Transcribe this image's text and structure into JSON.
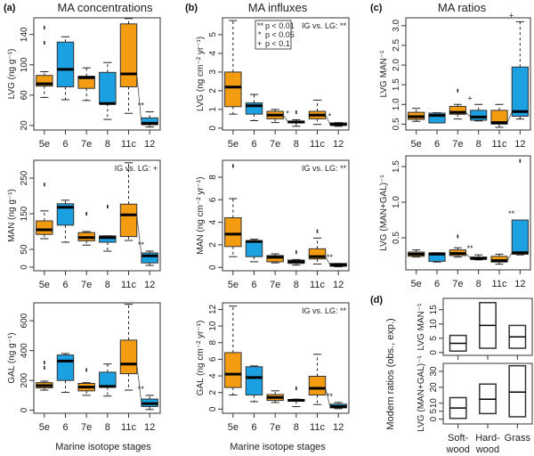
{
  "figure": {
    "column_titles": [
      "MA concentrations",
      "MA influxes",
      "MA ratios"
    ],
    "panel_letters": [
      "(a)",
      "(b)",
      "(c)",
      "(d)"
    ],
    "xlabel": "Marine isotope stages",
    "legend": [
      {
        "symbol": "**",
        "label": "p < 0.01"
      },
      {
        "symbol": "*",
        "label": "p < 0.05"
      },
      {
        "symbol": "+",
        "label": "p < 0.1"
      }
    ],
    "colors": {
      "interglacial": "#F39C12",
      "glacial": "#1BA1E2"
    },
    "modern_ylabel": "Modern ratios (obs., exp.)"
  },
  "chart_data": [
    {
      "type": "box",
      "panel": "a",
      "id": "a-lvg",
      "title": "MA concentrations",
      "ylabel": "LVG (ng g⁻¹)",
      "xlabel": "",
      "ylim": [
        14,
        162
      ],
      "yticks": [
        20,
        60,
        100,
        140
      ],
      "categories": [
        "5e",
        "6",
        "7e",
        "8",
        "11c",
        "12"
      ],
      "annotation": "",
      "boxes": [
        {
          "cat": "5e",
          "phase": "interglacial",
          "wlo": 57,
          "q1": 72,
          "med": 75,
          "q3": 86,
          "whi": 91,
          "outliers": [
            129,
            149
          ]
        },
        {
          "cat": "6",
          "phase": "glacial",
          "wlo": 54,
          "q1": 71,
          "med": 94,
          "q3": 130,
          "whi": 137,
          "outliers": []
        },
        {
          "cat": "7e",
          "phase": "interglacial",
          "wlo": 53,
          "q1": 69,
          "med": 83,
          "q3": 85,
          "whi": 96,
          "outliers": []
        },
        {
          "cat": "8",
          "phase": "glacial",
          "wlo": 28,
          "q1": 49,
          "med": 49,
          "q3": 90,
          "whi": 103,
          "outliers": []
        },
        {
          "cat": "11c",
          "phase": "interglacial",
          "wlo": 36,
          "q1": 71,
          "med": 88,
          "q3": 154,
          "whi": 161,
          "outliers": []
        },
        {
          "cat": "12",
          "phase": "glacial",
          "wlo": 18,
          "q1": 21,
          "med": 23,
          "q3": 30,
          "whi": 38,
          "outliers": []
        }
      ],
      "sig": [
        {
          "between": [
            "11c",
            "12"
          ],
          "label": "**"
        }
      ]
    },
    {
      "type": "box",
      "panel": "a",
      "id": "a-man",
      "ylabel": "MAN (ng g⁻¹)",
      "xlabel": "",
      "ylim": [
        -10,
        300
      ],
      "yticks": [
        0,
        50,
        150,
        250
      ],
      "categories": [
        "5e",
        "6",
        "7e",
        "8",
        "11c",
        "12"
      ],
      "annotation": "IG vs. LG: +",
      "boxes": [
        {
          "cat": "5e",
          "phase": "interglacial",
          "wlo": 80,
          "q1": 92,
          "med": 105,
          "q3": 130,
          "whi": 158,
          "outliers": [
            232
          ]
        },
        {
          "cat": "6",
          "phase": "glacial",
          "wlo": 70,
          "q1": 118,
          "med": 168,
          "q3": 178,
          "whi": 188,
          "outliers": []
        },
        {
          "cat": "7e",
          "phase": "interglacial",
          "wlo": 62,
          "q1": 74,
          "med": 83,
          "q3": 97,
          "whi": 100,
          "outliers": [
            150
          ]
        },
        {
          "cat": "8",
          "phase": "glacial",
          "wlo": 45,
          "q1": 70,
          "med": 83,
          "q3": 88,
          "whi": 88,
          "outliers": [
            170
          ]
        },
        {
          "cat": "11c",
          "phase": "interglacial",
          "wlo": 75,
          "q1": 86,
          "med": 147,
          "q3": 177,
          "whi": 293,
          "outliers": []
        },
        {
          "cat": "12",
          "phase": "glacial",
          "wlo": 5,
          "q1": 12,
          "med": 32,
          "q3": 40,
          "whi": 45,
          "outliers": []
        }
      ],
      "sig": [
        {
          "between": [
            "11c",
            "12"
          ],
          "label": "**"
        }
      ]
    },
    {
      "type": "box",
      "panel": "a",
      "id": "a-gal",
      "ylabel": "GAL (ng g⁻¹)",
      "xlabel": "Marine isotope stages",
      "ylim": [
        -20,
        720
      ],
      "yticks": [
        0,
        200,
        400,
        600
      ],
      "categories": [
        "5e",
        "6",
        "7e",
        "8",
        "11c",
        "12"
      ],
      "annotation": "",
      "boxes": [
        {
          "cat": "5e",
          "phase": "interglacial",
          "wlo": 135,
          "q1": 150,
          "med": 165,
          "q3": 185,
          "whi": 195,
          "outliers": [
            285,
            320
          ]
        },
        {
          "cat": "6",
          "phase": "glacial",
          "wlo": 120,
          "q1": 200,
          "med": 330,
          "q3": 370,
          "whi": 380,
          "outliers": []
        },
        {
          "cat": "7e",
          "phase": "interglacial",
          "wlo": 100,
          "q1": 130,
          "med": 155,
          "q3": 180,
          "whi": 185,
          "outliers": [
            270
          ]
        },
        {
          "cat": "8",
          "phase": "glacial",
          "wlo": 95,
          "q1": 155,
          "med": 160,
          "q3": 255,
          "whi": 310,
          "outliers": []
        },
        {
          "cat": "11c",
          "phase": "interglacial",
          "wlo": 135,
          "q1": 245,
          "med": 310,
          "q3": 470,
          "whi": 710,
          "outliers": []
        },
        {
          "cat": "12",
          "phase": "glacial",
          "wlo": 5,
          "q1": 25,
          "med": 45,
          "q3": 75,
          "whi": 100,
          "outliers": []
        }
      ],
      "sig": [
        {
          "between": [
            "11c",
            "12"
          ],
          "label": "**"
        }
      ]
    },
    {
      "type": "box",
      "panel": "b",
      "id": "b-lvg",
      "title": "MA influxes",
      "ylabel": "LVG (ng cm⁻² yr⁻¹)",
      "xlabel": "",
      "ylim": [
        -0.1,
        5.9
      ],
      "yticks": [
        0,
        1,
        2,
        3,
        4,
        5
      ],
      "categories": [
        "5e",
        "6",
        "7e",
        "8",
        "11c",
        "12"
      ],
      "annotation": "IG vs. LG: **",
      "boxes": [
        {
          "cat": "5e",
          "phase": "interglacial",
          "wlo": 0.75,
          "q1": 1.15,
          "med": 2.2,
          "q3": 3.0,
          "whi": 5.75,
          "outliers": []
        },
        {
          "cat": "6",
          "phase": "glacial",
          "wlo": 0.4,
          "q1": 0.75,
          "med": 1.2,
          "q3": 1.35,
          "whi": 1.8,
          "outliers": []
        },
        {
          "cat": "7e",
          "phase": "interglacial",
          "wlo": 0.3,
          "q1": 0.5,
          "med": 0.7,
          "q3": 0.9,
          "whi": 1.0,
          "outliers": []
        },
        {
          "cat": "8",
          "phase": "glacial",
          "wlo": 0.1,
          "q1": 0.28,
          "med": 0.33,
          "q3": 0.38,
          "whi": 0.45,
          "outliers": [
            0.85
          ]
        },
        {
          "cat": "11c",
          "phase": "interglacial",
          "wlo": 0.2,
          "q1": 0.5,
          "med": 0.7,
          "q3": 0.9,
          "whi": 1.5,
          "outliers": []
        },
        {
          "cat": "12",
          "phase": "glacial",
          "wlo": 0.1,
          "q1": 0.15,
          "med": 0.2,
          "q3": 0.28,
          "whi": 0.3,
          "outliers": []
        }
      ],
      "sig": [
        {
          "between": [
            "7e",
            "8"
          ],
          "label": "*"
        },
        {
          "between": [
            "11c",
            "12"
          ],
          "label": "*"
        }
      ]
    },
    {
      "type": "box",
      "panel": "b",
      "id": "b-man",
      "ylabel": "MAN (ng cm⁻² yr⁻¹)",
      "xlabel": "",
      "ylim": [
        -0.3,
        9.5
      ],
      "yticks": [
        0,
        2,
        4,
        6,
        8
      ],
      "categories": [
        "5e",
        "6",
        "7e",
        "8",
        "11c",
        "12"
      ],
      "annotation": "IG vs. LG: **",
      "boxes": [
        {
          "cat": "5e",
          "phase": "interglacial",
          "wlo": 0.95,
          "q1": 1.85,
          "med": 2.95,
          "q3": 4.4,
          "whi": 6.1,
          "outliers": [
            9.0
          ]
        },
        {
          "cat": "6",
          "phase": "glacial",
          "wlo": 0.5,
          "q1": 0.95,
          "med": 2.3,
          "q3": 2.35,
          "whi": 2.5,
          "outliers": []
        },
        {
          "cat": "7e",
          "phase": "interglacial",
          "wlo": 0.4,
          "q1": 0.5,
          "med": 0.9,
          "q3": 1.05,
          "whi": 1.2,
          "outliers": []
        },
        {
          "cat": "8",
          "phase": "glacial",
          "wlo": 0.2,
          "q1": 0.35,
          "med": 0.5,
          "q3": 0.65,
          "whi": 0.7,
          "outliers": [
            1.35
          ]
        },
        {
          "cat": "11c",
          "phase": "interglacial",
          "wlo": 0.3,
          "q1": 0.75,
          "med": 0.95,
          "q3": 1.65,
          "whi": 2.6,
          "outliers": [
            3.2
          ]
        },
        {
          "cat": "12",
          "phase": "glacial",
          "wlo": 0.05,
          "q1": 0.1,
          "med": 0.2,
          "q3": 0.35,
          "whi": 0.35,
          "outliers": []
        }
      ],
      "sig": [
        {
          "between": [
            "11c",
            "12"
          ],
          "label": "**"
        }
      ]
    },
    {
      "type": "box",
      "panel": "b",
      "id": "b-gal",
      "ylabel": "GAL (ng cm⁻² yr⁻¹)",
      "xlabel": "Marine isotope stages",
      "ylim": [
        -0.5,
        12.8
      ],
      "yticks": [
        0,
        2,
        4,
        6,
        8,
        10,
        12
      ],
      "categories": [
        "5e",
        "6",
        "7e",
        "8",
        "11c",
        "12"
      ],
      "annotation": "IG vs. LG: **",
      "boxes": [
        {
          "cat": "5e",
          "phase": "interglacial",
          "wlo": 1.7,
          "q1": 2.6,
          "med": 4.2,
          "q3": 6.8,
          "whi": 12.4,
          "outliers": []
        },
        {
          "cat": "6",
          "phase": "glacial",
          "wlo": 0.9,
          "q1": 1.7,
          "med": 3.8,
          "q3": 5.1,
          "whi": 5.2,
          "outliers": []
        },
        {
          "cat": "7e",
          "phase": "interglacial",
          "wlo": 0.8,
          "q1": 1.05,
          "med": 1.4,
          "q3": 1.75,
          "whi": 2.2,
          "outliers": []
        },
        {
          "cat": "8",
          "phase": "glacial",
          "wlo": 0.3,
          "q1": 0.95,
          "med": 1.05,
          "q3": 1.15,
          "whi": 1.2,
          "outliers": [
            2.5
          ]
        },
        {
          "cat": "11c",
          "phase": "interglacial",
          "wlo": 0.55,
          "q1": 1.7,
          "med": 2.5,
          "q3": 3.95,
          "whi": 6.6,
          "outliers": []
        },
        {
          "cat": "12",
          "phase": "glacial",
          "wlo": 0.05,
          "q1": 0.15,
          "med": 0.3,
          "q3": 0.6,
          "whi": 0.8,
          "outliers": []
        }
      ],
      "sig": [
        {
          "between": [
            "11c",
            "12"
          ],
          "label": "**"
        }
      ]
    },
    {
      "type": "box",
      "panel": "c",
      "id": "c-lvgman",
      "title": "MA ratios",
      "ylabel": "LVG MAN⁻¹",
      "xlabel": "",
      "ylim": [
        0.35,
        3.2
      ],
      "yticks": [
        0.5,
        1.0,
        1.5,
        2.0,
        2.5,
        3.0
      ],
      "ytick_labels": [
        "0.5",
        "1.0",
        "1.5",
        "2.0",
        "2.5",
        "3.0"
      ],
      "categories": [
        "5e",
        "6",
        "7e",
        "8",
        "11c",
        "12"
      ],
      "annotation": "",
      "boxes": [
        {
          "cat": "5e",
          "phase": "interglacial",
          "wlo": 0.57,
          "q1": 0.62,
          "med": 0.69,
          "q3": 0.8,
          "whi": 0.9,
          "outliers": []
        },
        {
          "cat": "6",
          "phase": "glacial",
          "wlo": 0.53,
          "q1": 0.53,
          "med": 0.72,
          "q3": 0.78,
          "whi": 0.79,
          "outliers": []
        },
        {
          "cat": "7e",
          "phase": "interglacial",
          "wlo": 0.63,
          "q1": 0.75,
          "med": 0.8,
          "q3": 0.95,
          "whi": 1.0,
          "outliers": [
            1.35
          ]
        },
        {
          "cat": "8",
          "phase": "glacial",
          "wlo": 0.58,
          "q1": 0.6,
          "med": 0.68,
          "q3": 0.85,
          "whi": 1.0,
          "outliers": []
        },
        {
          "cat": "11c",
          "phase": "interglacial",
          "wlo": 0.42,
          "q1": 0.5,
          "med": 0.54,
          "q3": 0.85,
          "whi": 1.0,
          "outliers": []
        },
        {
          "cat": "12",
          "phase": "glacial",
          "wlo": 0.63,
          "q1": 0.7,
          "med": 0.82,
          "q3": 1.95,
          "whi": 3.1,
          "outliers": []
        }
      ],
      "sig": [
        {
          "between": [
            "7e",
            "8"
          ],
          "label": "+"
        },
        {
          "between": [
            "11c",
            "12"
          ],
          "label": "+"
        }
      ]
    },
    {
      "type": "box",
      "panel": "c",
      "id": "c-lvgmangal",
      "ylabel": "LVG (MAN+GAL)⁻¹",
      "xlabel": "",
      "ylim": [
        0.05,
        1.65
      ],
      "yticks": [
        0.5,
        1.0,
        1.5
      ],
      "ytick_labels": [
        "0.5",
        "1.0",
        "1.5"
      ],
      "categories": [
        "5e",
        "6",
        "7e",
        "8",
        "11c",
        "12"
      ],
      "annotation": "",
      "boxes": [
        {
          "cat": "5e",
          "phase": "interglacial",
          "wlo": 0.23,
          "q1": 0.24,
          "med": 0.27,
          "q3": 0.3,
          "whi": 0.33,
          "outliers": []
        },
        {
          "cat": "6",
          "phase": "glacial",
          "wlo": 0.16,
          "q1": 0.17,
          "med": 0.27,
          "q3": 0.29,
          "whi": 0.29,
          "outliers": []
        },
        {
          "cat": "7e",
          "phase": "interglacial",
          "wlo": 0.23,
          "q1": 0.25,
          "med": 0.28,
          "q3": 0.33,
          "whi": 0.36,
          "outliers": [
            0.52
          ]
        },
        {
          "cat": "8",
          "phase": "glacial",
          "wlo": 0.19,
          "q1": 0.2,
          "med": 0.21,
          "q3": 0.23,
          "whi": 0.26,
          "outliers": []
        },
        {
          "cat": "11c",
          "phase": "interglacial",
          "wlo": 0.13,
          "q1": 0.16,
          "med": 0.18,
          "q3": 0.24,
          "whi": 0.27,
          "outliers": []
        },
        {
          "cat": "12",
          "phase": "glacial",
          "wlo": 0.26,
          "q1": 0.27,
          "med": 0.29,
          "q3": 0.75,
          "whi": 0.75,
          "outliers": [
            1.58
          ]
        }
      ],
      "sig": [
        {
          "between": [
            "7e",
            "8"
          ],
          "label": "**"
        },
        {
          "between": [
            "11c",
            "12"
          ],
          "label": "**"
        }
      ]
    },
    {
      "type": "box",
      "panel": "d",
      "id": "d-lvgman",
      "ylabel": "LVG MAN⁻¹",
      "xlabel": "",
      "ylim": [
        -1,
        19
      ],
      "yticks": [
        0,
        5,
        10,
        15
      ],
      "categories": [
        "Soft-wood",
        "Hard-wood",
        "Grass"
      ],
      "annotation": "",
      "boxes": [
        {
          "cat": "Soft-wood",
          "phase": "modern",
          "q1": 0.5,
          "med": 3.2,
          "q3": 6.0
        },
        {
          "cat": "Hard-wood",
          "phase": "modern",
          "q1": 1.5,
          "med": 9.5,
          "q3": 17.5
        },
        {
          "cat": "Grass",
          "phase": "modern",
          "q1": 1.5,
          "med": 5.5,
          "q3": 9.5
        }
      ],
      "sig": []
    },
    {
      "type": "box",
      "panel": "d",
      "id": "d-lvgmangal",
      "ylabel": "LVG (MAN+GAL)⁻¹",
      "xlabel": "",
      "ylim": [
        -3,
        35
      ],
      "yticks": [
        0,
        5,
        10,
        20,
        30
      ],
      "categories": [
        "Soft-wood",
        "Hard-wood",
        "Grass"
      ],
      "category_labels": [
        [
          "Soft-",
          "wood"
        ],
        [
          "Hard-",
          "wood"
        ],
        [
          "Grass"
        ]
      ],
      "annotation": "",
      "boxes": [
        {
          "cat": "Soft-wood",
          "phase": "modern",
          "q1": 0.5,
          "med": 7.0,
          "q3": 13.5
        },
        {
          "cat": "Hard-wood",
          "phase": "modern",
          "q1": 3.5,
          "med": 12.5,
          "q3": 22.0
        },
        {
          "cat": "Grass",
          "phase": "modern",
          "q1": 1.5,
          "med": 17.0,
          "q3": 33.5
        }
      ],
      "sig": []
    }
  ]
}
